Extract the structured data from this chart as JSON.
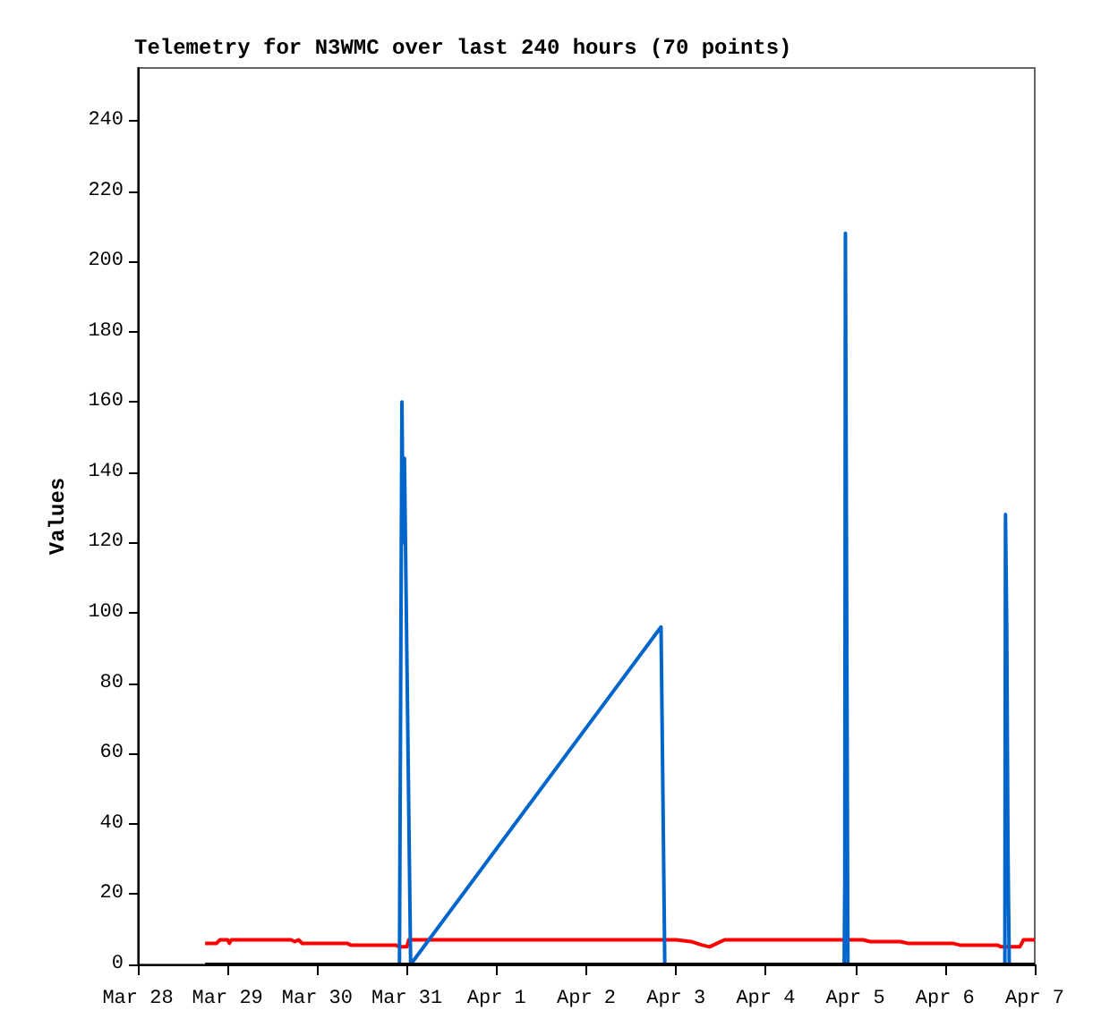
{
  "chart_data": {
    "type": "line",
    "title": "Telemetry for N3WMC over last 240 hours (70 points)",
    "ylabel": "Values",
    "marker": "none",
    "grid": false,
    "line_style": "solid",
    "xlim": [
      "--03-28",
      "--04-07"
    ],
    "xticks": [
      {
        "value": "--03-28",
        "label": "Mar 28"
      },
      {
        "value": "--03-29",
        "label": "Mar 29"
      },
      {
        "value": "--03-30",
        "label": "Mar 30"
      },
      {
        "value": "--03-31",
        "label": "Mar 31"
      },
      {
        "value": "--04-01",
        "label": "Apr 1"
      },
      {
        "value": "--04-02",
        "label": "Apr 2"
      },
      {
        "value": "--04-03",
        "label": "Apr 3"
      },
      {
        "value": "--04-04",
        "label": "Apr 4"
      },
      {
        "value": "--04-05",
        "label": "Apr 5"
      },
      {
        "value": "--04-06",
        "label": "Apr 6"
      },
      {
        "value": "--04-07",
        "label": "Apr 7"
      }
    ],
    "ylim": [
      0,
      255
    ],
    "yticks": [
      0,
      20,
      40,
      60,
      80,
      100,
      120,
      140,
      160,
      180,
      200,
      220,
      240
    ],
    "series": [
      {
        "color": "#ff0000",
        "x": [
          "--03-28T18:00",
          "--03-28T21:00",
          "--03-28T22:00",
          "--03-29T00:00",
          "--03-29T00:30",
          "--03-29T01:00",
          "--03-29T17:00",
          "--03-29T18:00",
          "--03-29T19:00",
          "--03-29T20:00",
          "--03-30T08:00",
          "--03-30T09:00",
          "--03-30T21:00",
          "--03-30T22:00",
          "--03-31T00:00",
          "--03-31T00:30",
          "--04-03T00:00",
          "--04-03T04:00",
          "--04-03T07:00",
          "--04-03T09:00",
          "--04-03T11:00",
          "--04-03T13:00",
          "--04-05T02:00",
          "--04-05T04:00",
          "--04-05T12:00",
          "--04-05T14:00",
          "--04-06T02:00",
          "--04-06T04:00",
          "--04-06T14:00",
          "--04-06T15:00",
          "--04-06T20:00",
          "--04-06T21:00",
          "--04-07T00:00"
        ],
        "values": [
          6,
          6,
          7,
          7,
          6,
          7,
          7,
          6.5,
          7,
          6,
          6,
          5.5,
          5.5,
          5,
          5,
          7,
          7,
          6.5,
          5.5,
          5,
          6,
          7,
          7,
          6.5,
          6.5,
          6,
          6,
          5.5,
          5.5,
          5,
          5,
          7,
          7
        ]
      },
      {
        "color": "#0066cc",
        "x": [
          "--03-30T22:00",
          "--03-30T22:40",
          "--03-30T23:00",
          "--03-30T23:20",
          "--03-31T01:00",
          "--04-02T20:00",
          "--04-02T20:30",
          "--04-02T21:00",
          "--04-04T21:00",
          "--04-04T21:10",
          "--04-04T21:20",
          "--04-04T21:40",
          "--04-04T22:00",
          "--04-06T16:00",
          "--04-06T16:10",
          "--04-06T16:30",
          "--04-06T16:50",
          "--04-06T17:10",
          "--04-07T00:00"
        ],
        "values": [
          0,
          160,
          120,
          144,
          0,
          96,
          48,
          0,
          0,
          24,
          208,
          104,
          0,
          0,
          128,
          96,
          32,
          0,
          0
        ]
      },
      {
        "color": "#000000",
        "x": [
          "--03-28T18:00",
          "--04-07T00:00"
        ],
        "values": [
          0,
          0
        ]
      }
    ]
  }
}
